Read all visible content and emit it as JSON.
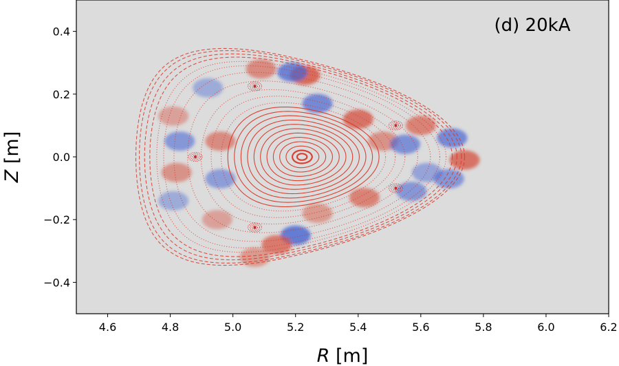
{
  "chart_data": {
    "type": "heatmap",
    "title": "",
    "annotation": "(d) 20kA",
    "xlabel_italic": "R",
    "xlabel_unit": " [m]",
    "ylabel_italic": "Z",
    "ylabel_unit": " [m]",
    "xlim": [
      4.5,
      6.2
    ],
    "ylim": [
      -0.5,
      0.5
    ],
    "xticks": [
      4.6,
      4.8,
      5.0,
      5.2,
      5.4,
      5.6,
      5.8,
      6.0,
      6.2
    ],
    "xtick_labels": [
      "4.6",
      "4.8",
      "5.0",
      "5.2",
      "5.4",
      "5.6",
      "5.8",
      "6.0",
      "6.2"
    ],
    "yticks": [
      0.4,
      0.2,
      0.0,
      -0.2,
      -0.4
    ],
    "ytick_labels": [
      "0.4",
      "0.2",
      "0.0",
      "−0.2",
      "−0.4"
    ],
    "background_color": "#dcdcdc",
    "colormap": "coolwarm",
    "magnetic_axis": {
      "R": 5.22,
      "Z": 0.0
    },
    "islands": [
      {
        "R": 4.88,
        "Z": 0.0
      },
      {
        "R": 5.07,
        "Z": 0.225
      },
      {
        "R": 5.07,
        "Z": -0.225
      },
      {
        "R": 5.52,
        "Z": 0.1
      },
      {
        "R": 5.52,
        "Z": -0.1
      }
    ],
    "perturbation_blobs": [
      {
        "R": 5.23,
        "Z": 0.26,
        "amp": 1.0
      },
      {
        "R": 5.19,
        "Z": 0.27,
        "amp": -0.9
      },
      {
        "R": 5.27,
        "Z": 0.17,
        "amp": -0.8
      },
      {
        "R": 5.09,
        "Z": 0.28,
        "amp": 0.6
      },
      {
        "R": 5.4,
        "Z": 0.12,
        "amp": 0.9
      },
      {
        "R": 5.48,
        "Z": 0.05,
        "amp": 0.5
      },
      {
        "R": 5.6,
        "Z": 0.1,
        "amp": 0.7
      },
      {
        "R": 5.55,
        "Z": 0.04,
        "amp": -0.7
      },
      {
        "R": 5.7,
        "Z": 0.06,
        "amp": -0.8
      },
      {
        "R": 5.74,
        "Z": -0.01,
        "amp": 0.9
      },
      {
        "R": 5.69,
        "Z": -0.07,
        "amp": -0.6
      },
      {
        "R": 5.57,
        "Z": -0.11,
        "amp": -0.6
      },
      {
        "R": 5.42,
        "Z": -0.13,
        "amp": 0.7
      },
      {
        "R": 5.27,
        "Z": -0.18,
        "amp": 0.4
      },
      {
        "R": 5.2,
        "Z": -0.25,
        "amp": -1.0
      },
      {
        "R": 5.14,
        "Z": -0.28,
        "amp": 0.8
      },
      {
        "R": 5.07,
        "Z": -0.32,
        "amp": 0.4
      },
      {
        "R": 4.96,
        "Z": 0.05,
        "amp": 0.6
      },
      {
        "R": 4.96,
        "Z": -0.07,
        "amp": -0.5
      },
      {
        "R": 4.83,
        "Z": 0.05,
        "amp": -0.6
      },
      {
        "R": 4.82,
        "Z": -0.05,
        "amp": 0.5
      },
      {
        "R": 4.81,
        "Z": 0.13,
        "amp": 0.3
      },
      {
        "R": 4.81,
        "Z": -0.14,
        "amp": -0.3
      },
      {
        "R": 4.92,
        "Z": 0.22,
        "amp": -0.3
      },
      {
        "R": 4.95,
        "Z": -0.2,
        "amp": 0.3
      },
      {
        "R": 5.62,
        "Z": -0.05,
        "amp": -0.4
      }
    ]
  }
}
